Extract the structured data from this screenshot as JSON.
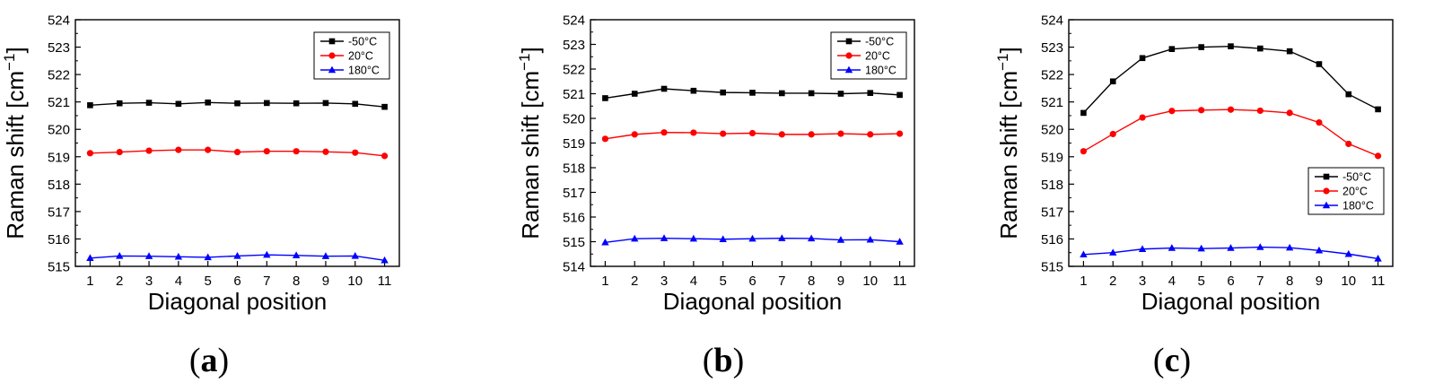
{
  "figure": {
    "captions": [
      "a",
      "b",
      "c"
    ]
  },
  "colors": {
    "-50°C": "#000000",
    "20°C": "#ff0000",
    "180°C": "#0000ff"
  },
  "chart_data": [
    {
      "type": "line",
      "panel": "a",
      "xlabel": "Diagonal position",
      "ylabel": "Raman shift [cm",
      "ylabel_sup": "−1",
      "ylabel_close": "]",
      "x": [
        1,
        2,
        3,
        4,
        5,
        6,
        7,
        8,
        9,
        10,
        11
      ],
      "xlim": [
        0.5,
        11.5
      ],
      "ylim": [
        515,
        524
      ],
      "yticks": [
        515,
        516,
        517,
        518,
        519,
        520,
        521,
        522,
        523,
        524
      ],
      "legend_position": "top-right",
      "series": [
        {
          "name": "-50°C",
          "marker": "square",
          "values": [
            520.88,
            520.95,
            520.97,
            520.93,
            520.98,
            520.95,
            520.96,
            520.95,
            520.96,
            520.93,
            520.82
          ]
        },
        {
          "name": "20°C",
          "marker": "circle",
          "values": [
            519.13,
            519.17,
            519.22,
            519.25,
            519.25,
            519.17,
            519.2,
            519.2,
            519.18,
            519.15,
            519.03
          ]
        },
        {
          "name": "180°C",
          "marker": "triangle",
          "values": [
            515.3,
            515.38,
            515.37,
            515.35,
            515.33,
            515.38,
            515.42,
            515.4,
            515.37,
            515.38,
            515.22
          ]
        }
      ]
    },
    {
      "type": "line",
      "panel": "b",
      "xlabel": "Diagonal position",
      "ylabel": "Raman shift [cm",
      "ylabel_sup": "−1",
      "ylabel_close": "]",
      "x": [
        1,
        2,
        3,
        4,
        5,
        6,
        7,
        8,
        9,
        10,
        11
      ],
      "xlim": [
        0.5,
        11.5
      ],
      "ylim": [
        514,
        524
      ],
      "yticks": [
        514,
        515,
        516,
        517,
        518,
        519,
        520,
        521,
        522,
        523,
        524
      ],
      "legend_position": "top-right",
      "series": [
        {
          "name": "-50°C",
          "marker": "square",
          "values": [
            520.82,
            521.0,
            521.2,
            521.12,
            521.05,
            521.04,
            521.02,
            521.02,
            521.0,
            521.03,
            520.95
          ]
        },
        {
          "name": "20°C",
          "marker": "circle",
          "values": [
            519.17,
            519.35,
            519.43,
            519.42,
            519.38,
            519.4,
            519.35,
            519.35,
            519.38,
            519.35,
            519.38
          ]
        },
        {
          "name": "180°C",
          "marker": "triangle",
          "values": [
            514.97,
            515.12,
            515.14,
            515.12,
            515.1,
            515.12,
            515.14,
            515.13,
            515.07,
            515.08,
            515.0
          ]
        }
      ]
    },
    {
      "type": "line",
      "panel": "c",
      "xlabel": "Diagonal position",
      "ylabel": "Raman shift [cm",
      "ylabel_sup": "−1",
      "ylabel_close": "]",
      "x": [
        1,
        2,
        3,
        4,
        5,
        6,
        7,
        8,
        9,
        10,
        11
      ],
      "xlim": [
        0.5,
        11.5
      ],
      "ylim": [
        515,
        524
      ],
      "yticks": [
        515,
        516,
        517,
        518,
        519,
        520,
        521,
        522,
        523,
        524
      ],
      "legend_position": "bottom-right",
      "series": [
        {
          "name": "-50°C",
          "marker": "square",
          "values": [
            520.6,
            521.75,
            522.6,
            522.93,
            523.0,
            523.03,
            522.95,
            522.85,
            522.38,
            521.28,
            520.73
          ]
        },
        {
          "name": "20°C",
          "marker": "circle",
          "values": [
            519.2,
            519.83,
            520.43,
            520.67,
            520.7,
            520.72,
            520.68,
            520.6,
            520.25,
            519.47,
            519.03
          ]
        },
        {
          "name": "180°C",
          "marker": "triangle",
          "values": [
            515.43,
            515.5,
            515.63,
            515.67,
            515.65,
            515.67,
            515.7,
            515.68,
            515.58,
            515.45,
            515.28
          ]
        }
      ]
    }
  ]
}
